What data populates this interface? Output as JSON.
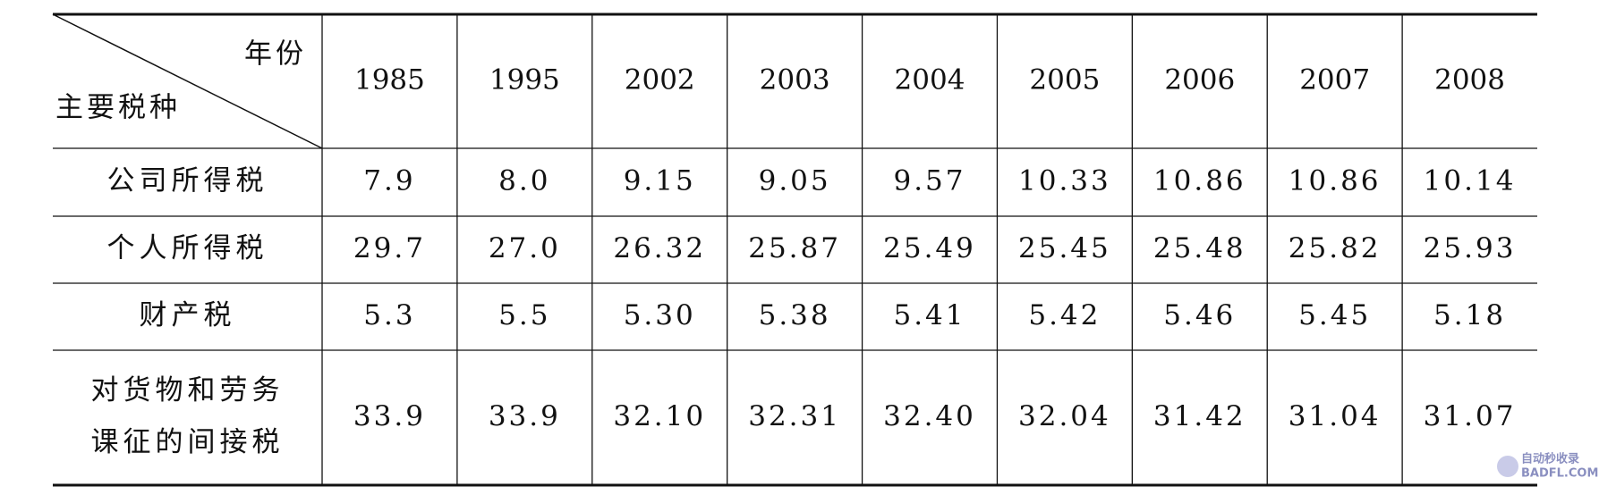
{
  "header": {
    "corner_top": "年份",
    "corner_bottom": "主要税种",
    "years": [
      "1985",
      "1995",
      "2002",
      "2003",
      "2004",
      "2005",
      "2006",
      "2007",
      "2008"
    ]
  },
  "rows": [
    {
      "label": [
        "公司所得税"
      ],
      "values": [
        "7.9",
        "8.0",
        "9.15",
        "9.05",
        "9.57",
        "10.33",
        "10.86",
        "10.86",
        "10.14"
      ]
    },
    {
      "label": [
        "个人所得税"
      ],
      "values": [
        "29.7",
        "27.0",
        "26.32",
        "25.87",
        "25.49",
        "25.45",
        "25.48",
        "25.82",
        "25.93"
      ]
    },
    {
      "label": [
        "财产税"
      ],
      "values": [
        "5.3",
        "5.5",
        "5.30",
        "5.38",
        "5.41",
        "5.42",
        "5.46",
        "5.45",
        "5.18"
      ]
    },
    {
      "label": [
        "对货物和劳务",
        "课征的间接税"
      ],
      "values": [
        "33.9",
        "33.9",
        "32.10",
        "32.31",
        "32.40",
        "32.04",
        "31.42",
        "31.04",
        "31.07"
      ]
    }
  ],
  "watermark": [
    "自动秒收录",
    "BADFL.COM"
  ]
}
